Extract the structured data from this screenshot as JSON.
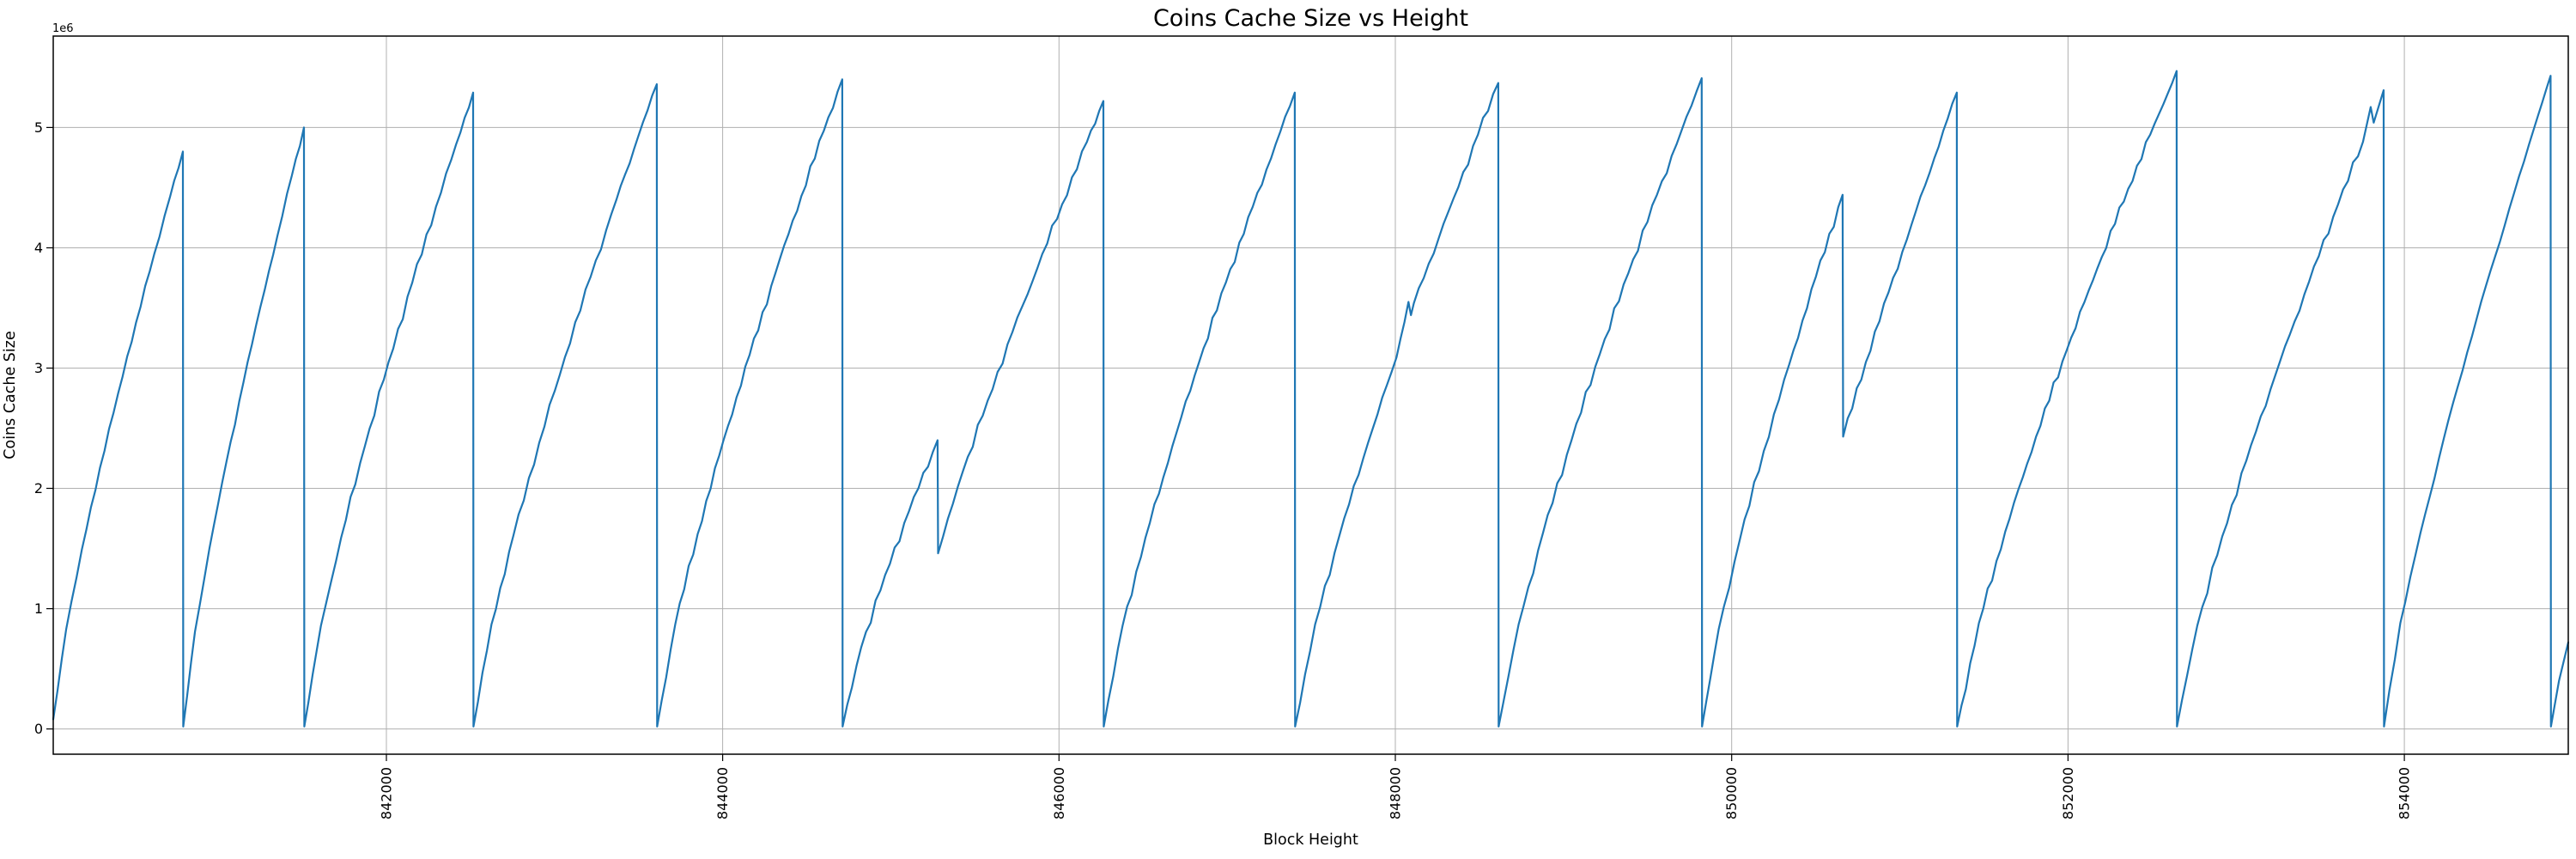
{
  "page": {
    "background": "#ffffff"
  },
  "chart_data": {
    "type": "line",
    "title": "Coins Cache Size vs Height",
    "xlabel": "Block Height",
    "ylabel": "Coins Cache Size",
    "y_axis_offset_label": "1e6",
    "value_unit": "millions (y axis shown in 1e6 units)",
    "grid": true,
    "legend": "none",
    "line_color": "#1f77b4",
    "grid_color": "#b0b0b0",
    "axis_color": "#000000",
    "background_color": "#ffffff",
    "xlim": [
      840019,
      854975
    ],
    "ylim_millions": [
      -0.21,
      5.76
    ],
    "x_ticks": [
      {
        "value": 842000,
        "label": "842000"
      },
      {
        "value": 844000,
        "label": "844000"
      },
      {
        "value": 846000,
        "label": "846000"
      },
      {
        "value": 848000,
        "label": "848000"
      },
      {
        "value": 850000,
        "label": "850000"
      },
      {
        "value": 852000,
        "label": "852000"
      },
      {
        "value": 854000,
        "label": "854000"
      }
    ],
    "y_ticks_millions": [
      {
        "value": 0,
        "label": "0"
      },
      {
        "value": 1,
        "label": "1"
      },
      {
        "value": 2,
        "label": "2"
      },
      {
        "value": 3,
        "label": "3"
      },
      {
        "value": 4,
        "label": "4"
      },
      {
        "value": 5,
        "label": "5"
      }
    ],
    "series": [
      {
        "name": "coins-cache-size",
        "color": "#1f77b4",
        "points_height_vs_millions": [
          [
            840019,
            0.08
          ],
          [
            840096,
            0.83
          ],
          [
            840189,
            1.49
          ],
          [
            840297,
            2.17
          ],
          [
            840405,
            2.79
          ],
          [
            840512,
            3.38
          ],
          [
            840620,
            3.95
          ],
          [
            840713,
            4.42
          ],
          [
            840790,
            4.8
          ],
          [
            840792,
            0.02
          ],
          [
            840862,
            0.81
          ],
          [
            840948,
            1.5
          ],
          [
            841049,
            2.22
          ],
          [
            841150,
            2.88
          ],
          [
            841251,
            3.51
          ],
          [
            841352,
            4.1
          ],
          [
            841438,
            4.6
          ],
          [
            841510,
            5.0
          ],
          [
            841512,
            0.02
          ],
          [
            841611,
            0.86
          ],
          [
            841731,
            1.59
          ],
          [
            841872,
            2.35
          ],
          [
            842013,
            3.05
          ],
          [
            842154,
            3.71
          ],
          [
            842295,
            4.34
          ],
          [
            842415,
            4.86
          ],
          [
            842516,
            5.29
          ],
          [
            842518,
            0.02
          ],
          [
            842625,
            0.87
          ],
          [
            842756,
            1.61
          ],
          [
            842909,
            2.38
          ],
          [
            843062,
            3.09
          ],
          [
            843215,
            3.76
          ],
          [
            843368,
            4.4
          ],
          [
            843499,
            4.93
          ],
          [
            843608,
            5.36
          ],
          [
            843610,
            0.02
          ],
          [
            843718,
            0.87
          ],
          [
            843851,
            1.62
          ],
          [
            844005,
            2.4
          ],
          [
            844160,
            3.11
          ],
          [
            844314,
            3.79
          ],
          [
            844468,
            4.43
          ],
          [
            844601,
            4.97
          ],
          [
            844711,
            5.4
          ],
          [
            844713,
            0.02
          ],
          [
            844824,
            0.68
          ],
          [
            844966,
            1.28
          ],
          [
            845108,
            1.81
          ],
          [
            845278,
            2.4
          ],
          [
            845281,
            1.46
          ],
          [
            845428,
            2.14
          ],
          [
            845576,
            2.73
          ],
          [
            845723,
            3.3
          ],
          [
            845871,
            3.83
          ],
          [
            846018,
            4.36
          ],
          [
            846166,
            4.88
          ],
          [
            846264,
            5.22
          ],
          [
            846266,
            0.02
          ],
          [
            846378,
            0.86
          ],
          [
            846514,
            1.59
          ],
          [
            846674,
            2.35
          ],
          [
            846833,
            3.05
          ],
          [
            846992,
            3.71
          ],
          [
            847152,
            4.34
          ],
          [
            847288,
            4.86
          ],
          [
            847402,
            5.29
          ],
          [
            847404,
            0.02
          ],
          [
            847523,
            0.87
          ],
          [
            847668,
            1.61
          ],
          [
            847838,
            2.38
          ],
          [
            848007,
            3.09
          ],
          [
            848078,
            3.55
          ],
          [
            848093,
            3.44
          ],
          [
            848110,
            3.54
          ],
          [
            848346,
            4.41
          ],
          [
            848491,
            4.94
          ],
          [
            848612,
            5.37
          ],
          [
            848614,
            0.02
          ],
          [
            848733,
            0.87
          ],
          [
            848878,
            1.63
          ],
          [
            849048,
            2.4
          ],
          [
            849217,
            3.12
          ],
          [
            849386,
            3.79
          ],
          [
            849556,
            4.44
          ],
          [
            849701,
            4.97
          ],
          [
            849822,
            5.41
          ],
          [
            849824,
            0.02
          ],
          [
            849923,
            0.83
          ],
          [
            850048,
            1.57
          ],
          [
            850191,
            2.31
          ],
          [
            850342,
            3.03
          ],
          [
            850501,
            3.76
          ],
          [
            850660,
            4.44
          ],
          [
            850663,
            2.43
          ],
          [
            850798,
            3.05
          ],
          [
            850933,
            3.63
          ],
          [
            851069,
            4.19
          ],
          [
            851204,
            4.74
          ],
          [
            851339,
            5.29
          ],
          [
            851341,
            0.02
          ],
          [
            851470,
            0.88
          ],
          [
            851627,
            1.64
          ],
          [
            851810,
            2.43
          ],
          [
            851993,
            3.15
          ],
          [
            852175,
            3.83
          ],
          [
            852358,
            4.49
          ],
          [
            852515,
            5.03
          ],
          [
            852646,
            5.47
          ],
          [
            852648,
            0.02
          ],
          [
            852769,
            0.86
          ],
          [
            852917,
            1.6
          ],
          [
            853089,
            2.36
          ],
          [
            853262,
            3.06
          ],
          [
            853434,
            3.72
          ],
          [
            853606,
            4.36
          ],
          [
            853754,
            4.88
          ],
          [
            853800,
            5.17
          ],
          [
            853818,
            5.04
          ],
          [
            853877,
            5.31
          ],
          [
            853879,
            0.02
          ],
          [
            853976,
            0.88
          ],
          [
            854096,
            1.63
          ],
          [
            854234,
            2.41
          ],
          [
            854374,
            3.13
          ],
          [
            854513,
            3.81
          ],
          [
            854652,
            4.45
          ],
          [
            854771,
            4.99
          ],
          [
            854870,
            5.43
          ],
          [
            854872,
            0.02
          ],
          [
            854920,
            0.4
          ],
          [
            854975,
            0.72
          ]
        ]
      }
    ]
  }
}
